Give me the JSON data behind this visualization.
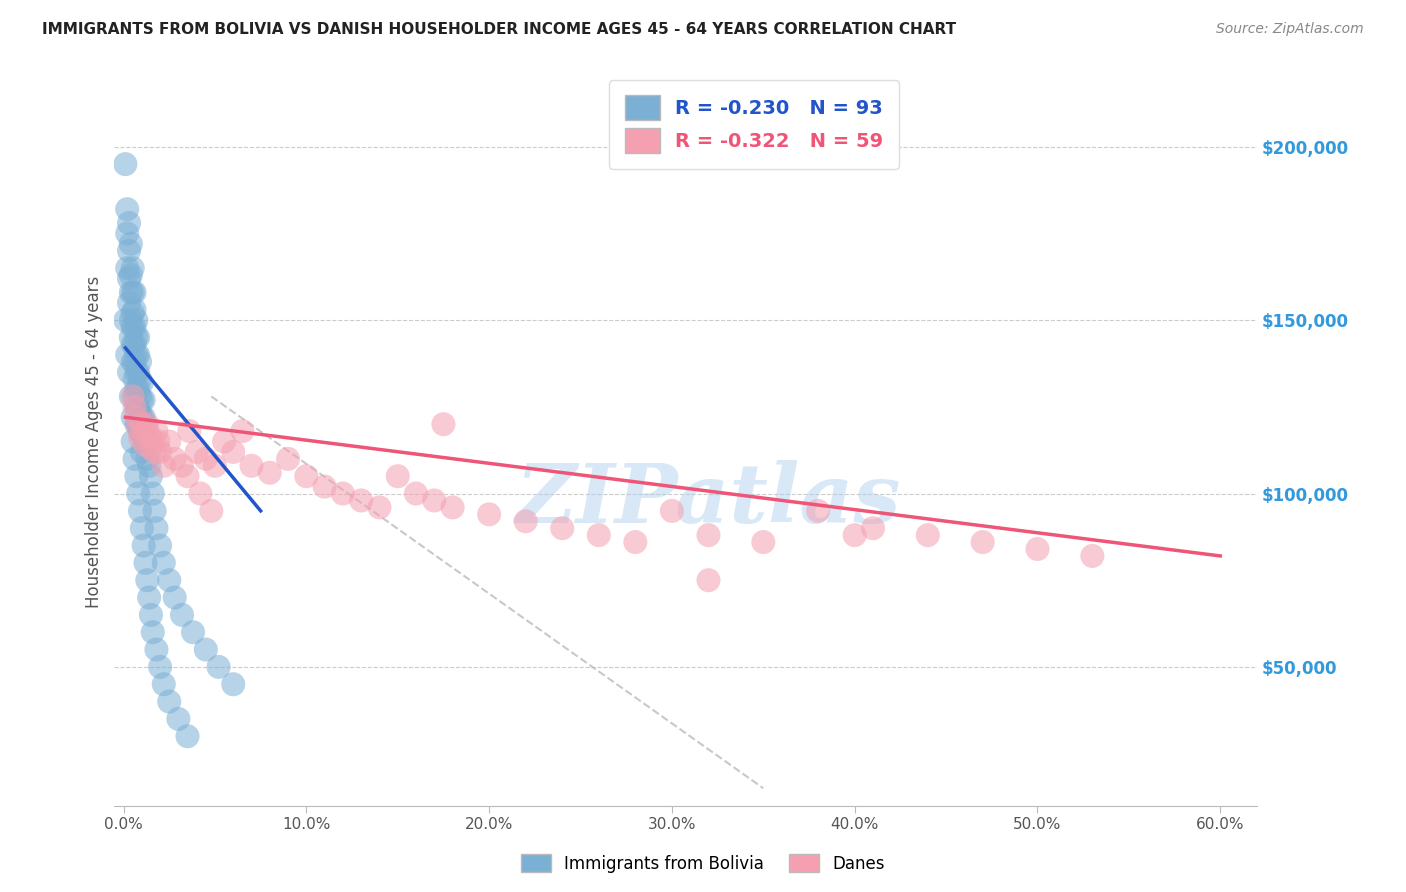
{
  "title": "IMMIGRANTS FROM BOLIVIA VS DANISH HOUSEHOLDER INCOME AGES 45 - 64 YEARS CORRELATION CHART",
  "source": "Source: ZipAtlas.com",
  "ylabel": "Householder Income Ages 45 - 64 years",
  "xlabel_ticks": [
    "0.0%",
    "10.0%",
    "20.0%",
    "30.0%",
    "40.0%",
    "50.0%",
    "60.0%"
  ],
  "xlabel_vals": [
    0.0,
    0.1,
    0.2,
    0.3,
    0.4,
    0.5,
    0.6
  ],
  "ylabel_ticks": [
    "$50,000",
    "$100,000",
    "$150,000",
    "$200,000"
  ],
  "ylabel_vals": [
    50000,
    100000,
    150000,
    200000
  ],
  "xlim": [
    -0.005,
    0.62
  ],
  "ylim": [
    10000,
    220000
  ],
  "R_blue": -0.23,
  "N_blue": 93,
  "R_pink": -0.322,
  "N_pink": 59,
  "legend_label_blue": "Immigrants from Bolivia",
  "legend_label_pink": "Danes",
  "blue_color": "#7BAFD4",
  "pink_color": "#F4A0B0",
  "blue_line_color": "#2255CC",
  "pink_line_color": "#EE5577",
  "watermark": "ZIPatlas",
  "watermark_color": "#AACCEE",
  "blue_line_x0": 0.001,
  "blue_line_y0": 142000,
  "blue_line_x1": 0.075,
  "blue_line_y1": 95000,
  "pink_line_x0": 0.001,
  "pink_line_y0": 122000,
  "pink_line_x1": 0.6,
  "pink_line_y1": 82000,
  "dash_line_x0": 0.048,
  "dash_line_y0": 128000,
  "dash_line_x1": 0.35,
  "dash_line_y1": 15000,
  "blue_x": [
    0.001,
    0.002,
    0.002,
    0.002,
    0.003,
    0.003,
    0.003,
    0.003,
    0.004,
    0.004,
    0.004,
    0.004,
    0.004,
    0.005,
    0.005,
    0.005,
    0.005,
    0.005,
    0.005,
    0.006,
    0.006,
    0.006,
    0.006,
    0.006,
    0.006,
    0.006,
    0.007,
    0.007,
    0.007,
    0.007,
    0.007,
    0.007,
    0.007,
    0.008,
    0.008,
    0.008,
    0.008,
    0.008,
    0.008,
    0.009,
    0.009,
    0.009,
    0.009,
    0.009,
    0.01,
    0.01,
    0.01,
    0.01,
    0.01,
    0.011,
    0.011,
    0.011,
    0.012,
    0.012,
    0.013,
    0.013,
    0.014,
    0.015,
    0.016,
    0.017,
    0.018,
    0.02,
    0.022,
    0.025,
    0.028,
    0.032,
    0.038,
    0.045,
    0.052,
    0.06,
    0.001,
    0.002,
    0.003,
    0.004,
    0.005,
    0.005,
    0.006,
    0.007,
    0.008,
    0.009,
    0.01,
    0.011,
    0.012,
    0.013,
    0.014,
    0.015,
    0.016,
    0.018,
    0.02,
    0.022,
    0.025,
    0.03,
    0.035
  ],
  "blue_y": [
    195000,
    182000,
    175000,
    165000,
    178000,
    170000,
    162000,
    155000,
    172000,
    163000,
    158000,
    150000,
    145000,
    165000,
    158000,
    152000,
    148000,
    143000,
    138000,
    158000,
    153000,
    148000,
    143000,
    138000,
    133000,
    128000,
    150000,
    145000,
    140000,
    135000,
    130000,
    125000,
    120000,
    145000,
    140000,
    135000,
    130000,
    125000,
    120000,
    138000,
    133000,
    128000,
    123000,
    118000,
    132000,
    127000,
    122000,
    117000,
    112000,
    127000,
    122000,
    117000,
    120000,
    115000,
    115000,
    110000,
    108000,
    105000,
    100000,
    95000,
    90000,
    85000,
    80000,
    75000,
    70000,
    65000,
    60000,
    55000,
    50000,
    45000,
    150000,
    140000,
    135000,
    128000,
    122000,
    115000,
    110000,
    105000,
    100000,
    95000,
    90000,
    85000,
    80000,
    75000,
    70000,
    65000,
    60000,
    55000,
    50000,
    45000,
    40000,
    35000,
    30000
  ],
  "pink_x": [
    0.005,
    0.006,
    0.007,
    0.008,
    0.009,
    0.01,
    0.011,
    0.012,
    0.013,
    0.014,
    0.015,
    0.016,
    0.017,
    0.018,
    0.019,
    0.02,
    0.022,
    0.025,
    0.028,
    0.032,
    0.036,
    0.04,
    0.045,
    0.05,
    0.055,
    0.06,
    0.065,
    0.07,
    0.08,
    0.09,
    0.1,
    0.11,
    0.12,
    0.13,
    0.14,
    0.15,
    0.16,
    0.17,
    0.18,
    0.2,
    0.22,
    0.24,
    0.26,
    0.28,
    0.3,
    0.32,
    0.35,
    0.38,
    0.41,
    0.44,
    0.47,
    0.5,
    0.53,
    0.035,
    0.042,
    0.048,
    0.175,
    0.32,
    0.4
  ],
  "pink_y": [
    128000,
    125000,
    122000,
    119000,
    116000,
    120000,
    117000,
    114000,
    120000,
    117000,
    113000,
    115000,
    112000,
    118000,
    115000,
    112000,
    108000,
    115000,
    110000,
    108000,
    118000,
    112000,
    110000,
    108000,
    115000,
    112000,
    118000,
    108000,
    106000,
    110000,
    105000,
    102000,
    100000,
    98000,
    96000,
    105000,
    100000,
    98000,
    96000,
    94000,
    92000,
    90000,
    88000,
    86000,
    95000,
    88000,
    86000,
    95000,
    90000,
    88000,
    86000,
    84000,
    82000,
    105000,
    100000,
    95000,
    120000,
    75000,
    88000
  ]
}
